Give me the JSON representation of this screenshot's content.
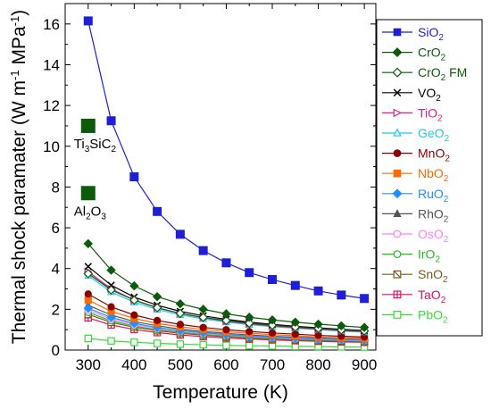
{
  "chart_data": {
    "type": "line",
    "xlabel": "Temperature (K)",
    "ylabel": {
      "base": "Thermal shock paramater (W m",
      "sup1": "-1",
      "mid": " MPa",
      "sup2": "-1",
      "end": ")"
    },
    "xlim": [
      250,
      925
    ],
    "ylim": [
      0,
      17
    ],
    "xticks": [
      300,
      400,
      500,
      600,
      700,
      800,
      900
    ],
    "yticks": [
      0,
      2,
      4,
      6,
      8,
      10,
      12,
      14,
      16
    ],
    "x": [
      300,
      350,
      400,
      450,
      500,
      550,
      600,
      650,
      700,
      750,
      800,
      850,
      900
    ],
    "legend_position": "right",
    "series": [
      {
        "name": "SiO",
        "sub": "2",
        "color": "#1f1fd6",
        "marker": "square-filled",
        "values": [
          16.15,
          11.25,
          8.5,
          6.8,
          5.68,
          4.88,
          4.28,
          3.8,
          3.46,
          3.17,
          2.9,
          2.7,
          2.53
        ]
      },
      {
        "name": "CrO",
        "sub": "2",
        "color": "#0c5a0c",
        "marker": "diamond-filled",
        "values": [
          5.22,
          3.92,
          3.15,
          2.62,
          2.27,
          2.0,
          1.78,
          1.61,
          1.48,
          1.37,
          1.27,
          1.19,
          1.11
        ]
      },
      {
        "name": "CrO",
        "sub": "2",
        "suffix": " FM",
        "color": "#0c5a0c",
        "marker": "diamond-open",
        "values": [
          3.75,
          2.95,
          2.45,
          2.08,
          1.8,
          1.6,
          1.45,
          1.32,
          1.22,
          1.13,
          1.06,
          0.99,
          0.94
        ]
      },
      {
        "name": "VO",
        "sub": "2",
        "color": "#000000",
        "marker": "cross",
        "values": [
          4.1,
          3.18,
          2.6,
          2.2,
          1.9,
          1.68,
          1.51,
          1.37,
          1.26,
          1.17,
          1.09,
          1.02,
          0.96
        ]
      },
      {
        "name": "TiO",
        "sub": "2",
        "color": "#e0208a",
        "marker": "tri-right-open",
        "values": [
          3.85,
          3.0,
          2.45,
          2.07,
          1.8,
          1.59,
          1.42,
          1.29,
          1.19,
          1.1,
          1.03,
          0.96,
          0.91
        ]
      },
      {
        "name": "GeO",
        "sub": "2",
        "color": "#20c8e8",
        "marker": "triangle-open",
        "values": [
          3.65,
          2.85,
          2.35,
          1.99,
          1.73,
          1.53,
          1.37,
          1.25,
          1.15,
          1.07,
          1.0,
          0.93,
          0.88
        ]
      },
      {
        "name": "MnO",
        "sub": "2",
        "color": "#8b0000",
        "marker": "circle-filled",
        "values": [
          2.75,
          2.12,
          1.72,
          1.45,
          1.26,
          1.11,
          1.0,
          0.91,
          0.84,
          0.78,
          0.72,
          0.68,
          0.64
        ]
      },
      {
        "name": "NbO",
        "sub": "2",
        "color": "#ff6a00",
        "marker": "square-filled",
        "values": [
          2.45,
          1.9,
          1.55,
          1.31,
          1.14,
          1.01,
          0.9,
          0.82,
          0.76,
          0.7,
          0.65,
          0.61,
          0.58
        ]
      },
      {
        "name": "RuO",
        "sub": "2",
        "color": "#1e90ff",
        "marker": "diamond-filled",
        "values": [
          2.05,
          1.6,
          1.31,
          1.11,
          0.96,
          0.85,
          0.76,
          0.69,
          0.64,
          0.59,
          0.55,
          0.52,
          0.49
        ]
      },
      {
        "name": "RhO",
        "sub": "2",
        "color": "#555555",
        "marker": "triangle-filled",
        "values": [
          2.2,
          1.72,
          1.4,
          1.19,
          1.03,
          0.91,
          0.82,
          0.74,
          0.68,
          0.63,
          0.59,
          0.55,
          0.52
        ]
      },
      {
        "name": "OsO",
        "sub": "2",
        "color": "#ff80ff",
        "marker": "circle-open",
        "values": [
          1.95,
          1.52,
          1.25,
          1.06,
          0.92,
          0.81,
          0.73,
          0.66,
          0.61,
          0.56,
          0.53,
          0.49,
          0.47
        ]
      },
      {
        "name": "IrO",
        "sub": "2",
        "color": "#22bb22",
        "marker": "circle-open",
        "values": [
          1.85,
          1.44,
          1.18,
          1.0,
          0.87,
          0.77,
          0.69,
          0.63,
          0.58,
          0.53,
          0.5,
          0.47,
          0.44
        ]
      },
      {
        "name": "SnO",
        "sub": "2",
        "color": "#7a5a1a",
        "marker": "square-star-open",
        "values": [
          1.75,
          1.36,
          1.12,
          0.95,
          0.82,
          0.73,
          0.65,
          0.59,
          0.55,
          0.51,
          0.47,
          0.44,
          0.42
        ]
      },
      {
        "name": "TaO",
        "sub": "2",
        "color": "#e01060",
        "marker": "square-hash",
        "values": [
          1.58,
          1.23,
          1.01,
          0.86,
          0.74,
          0.66,
          0.59,
          0.54,
          0.5,
          0.46,
          0.43,
          0.4,
          0.38
        ]
      },
      {
        "name": "PbO",
        "sub": "2",
        "color": "#33dd33",
        "marker": "square-open",
        "values": [
          0.57,
          0.45,
          0.38,
          0.33,
          0.29,
          0.26,
          0.23,
          0.21,
          0.2,
          0.18,
          0.17,
          0.16,
          0.15
        ]
      }
    ],
    "annotations": [
      {
        "parts": [
          [
            "Ti",
            ""
          ],
          [
            "3",
            "sub"
          ],
          [
            "SiC",
            ""
          ],
          [
            "2",
            "sub"
          ]
        ],
        "x": 300,
        "y": 11.0,
        "color": "#0c5a0c"
      },
      {
        "parts": [
          [
            "Al",
            ""
          ],
          [
            "2",
            "sub"
          ],
          [
            "O",
            ""
          ],
          [
            "3",
            "sub"
          ]
        ],
        "x": 300,
        "y": 7.7,
        "color": "#0c5a0c"
      }
    ]
  }
}
